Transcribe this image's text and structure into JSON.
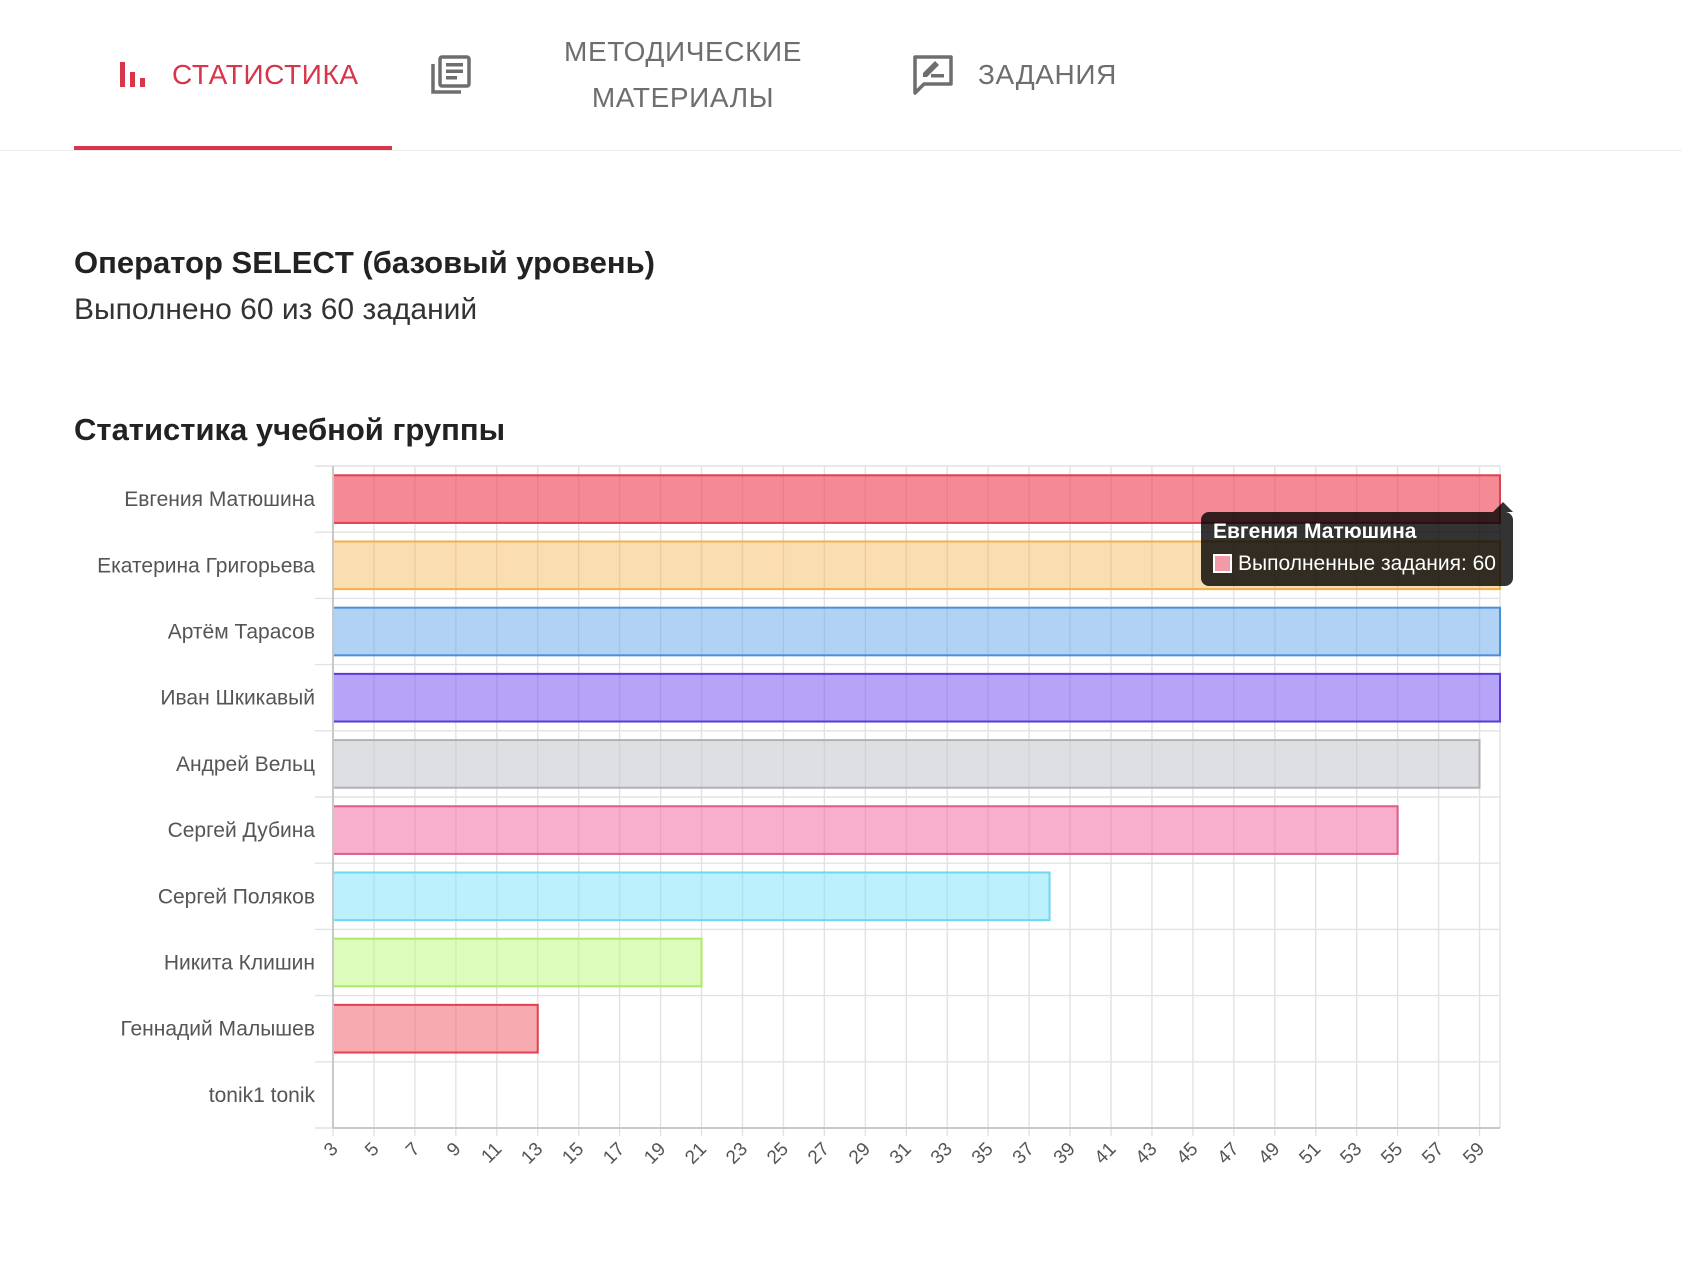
{
  "tabs": [
    {
      "label": "СТАТИСТИКА",
      "icon": "bar-chart-icon",
      "active": true
    },
    {
      "label": "МЕТОДИЧЕСКИЕ МАТЕРИАЛЫ",
      "line1": "МЕТОДИЧЕСКИЕ",
      "line2": "МАТЕРИАЛЫ",
      "icon": "library-books-icon",
      "active": false
    },
    {
      "label": "ЗАДАНИЯ",
      "icon": "rate-review-icon",
      "active": false
    }
  ],
  "colors": {
    "accent": "#d8344a",
    "tab_inactive": "#6e6e6e",
    "grid": "#e2e2e2"
  },
  "section": {
    "title": "Оператор SELECT (базовый уровень)",
    "progress": "Выполнено 60 из 60 заданий"
  },
  "group": {
    "title": "Статистика учебной группы"
  },
  "chart_data": {
    "type": "bar",
    "orientation": "horizontal",
    "categories": [
      "Евгения Матюшина",
      "Екатерина Григорьева",
      "Артём Тарасов",
      "Иван Шкикавый",
      "Андрей Вельц",
      "Сергей Дубина",
      "Сергей Поляков",
      "Никита Клишин",
      "Геннадий Малышев",
      "tonik1 tonik"
    ],
    "series": [
      {
        "name": "Выполненные задания",
        "values": [
          60,
          60,
          60,
          60,
          59,
          55,
          38,
          21,
          13,
          3
        ]
      }
    ],
    "bar_colors": [
      {
        "fill": "rgba(236,75,90,0.65)",
        "stroke": "#e0404f"
      },
      {
        "fill": "rgba(245,180,80,0.45)",
        "stroke": "#f0b04a"
      },
      {
        "fill": "rgba(100,165,235,0.5)",
        "stroke": "#4a90d9"
      },
      {
        "fill": "rgba(120,90,240,0.55)",
        "stroke": "#5a3ad8"
      },
      {
        "fill": "rgba(200,202,206,0.6)",
        "stroke": "#b0b2b6"
      },
      {
        "fill": "rgba(240,110,160,0.55)",
        "stroke": "#e05a8a"
      },
      {
        "fill": "rgba(120,225,250,0.5)",
        "stroke": "#6fd8f0"
      },
      {
        "fill": "rgba(190,250,130,0.55)",
        "stroke": "#aee86a"
      },
      {
        "fill": "rgba(240,100,110,0.55)",
        "stroke": "#e0404f"
      },
      {
        "fill": "rgba(200,200,200,0.5)",
        "stroke": "#aaaaaa"
      }
    ],
    "x_ticks": [
      3,
      5,
      7,
      9,
      11,
      13,
      15,
      17,
      19,
      21,
      23,
      25,
      27,
      29,
      31,
      33,
      35,
      37,
      39,
      41,
      43,
      45,
      47,
      49,
      51,
      53,
      55,
      57,
      59
    ],
    "xlim": [
      3,
      60
    ],
    "grid": true,
    "legend": "none",
    "tooltip": {
      "title": "Евгения Матюшина",
      "text": "Выполненные задания: 60",
      "swatch_color": "#f29aa8"
    }
  }
}
